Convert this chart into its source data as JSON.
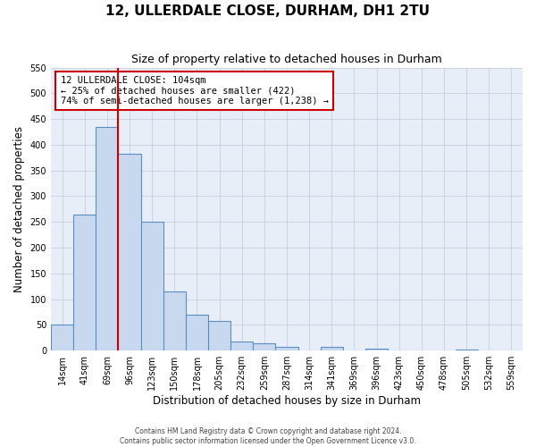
{
  "title": "12, ULLERDALE CLOSE, DURHAM, DH1 2TU",
  "subtitle": "Size of property relative to detached houses in Durham",
  "xlabel": "Distribution of detached houses by size in Durham",
  "ylabel": "Number of detached properties",
  "bin_labels": [
    "14sqm",
    "41sqm",
    "69sqm",
    "96sqm",
    "123sqm",
    "150sqm",
    "178sqm",
    "205sqm",
    "232sqm",
    "259sqm",
    "287sqm",
    "314sqm",
    "341sqm",
    "369sqm",
    "396sqm",
    "423sqm",
    "450sqm",
    "478sqm",
    "505sqm",
    "532sqm",
    "559sqm"
  ],
  "bin_values": [
    50,
    265,
    435,
    382,
    250,
    115,
    70,
    58,
    17,
    15,
    7,
    0,
    7,
    0,
    3,
    0,
    0,
    0,
    2,
    0,
    0
  ],
  "bar_color": "#c8d9ef",
  "bar_edge_color": "#5a8fc3",
  "vline_x_index": 3,
  "vline_color": "#cc0000",
  "annotation_text": "12 ULLERDALE CLOSE: 104sqm\n← 25% of detached houses are smaller (422)\n74% of semi-detached houses are larger (1,238) →",
  "annotation_box_color": "#ffffff",
  "annotation_box_edge_color": "#cc0000",
  "ylim": [
    0,
    550
  ],
  "yticks": [
    0,
    50,
    100,
    150,
    200,
    250,
    300,
    350,
    400,
    450,
    500,
    550
  ],
  "background_color": "#ffffff",
  "plot_bg_color": "#e8eef8",
  "grid_color": "#c0c8d8",
  "footer_line1": "Contains HM Land Registry data © Crown copyright and database right 2024.",
  "footer_line2": "Contains public sector information licensed under the Open Government Licence v3.0."
}
